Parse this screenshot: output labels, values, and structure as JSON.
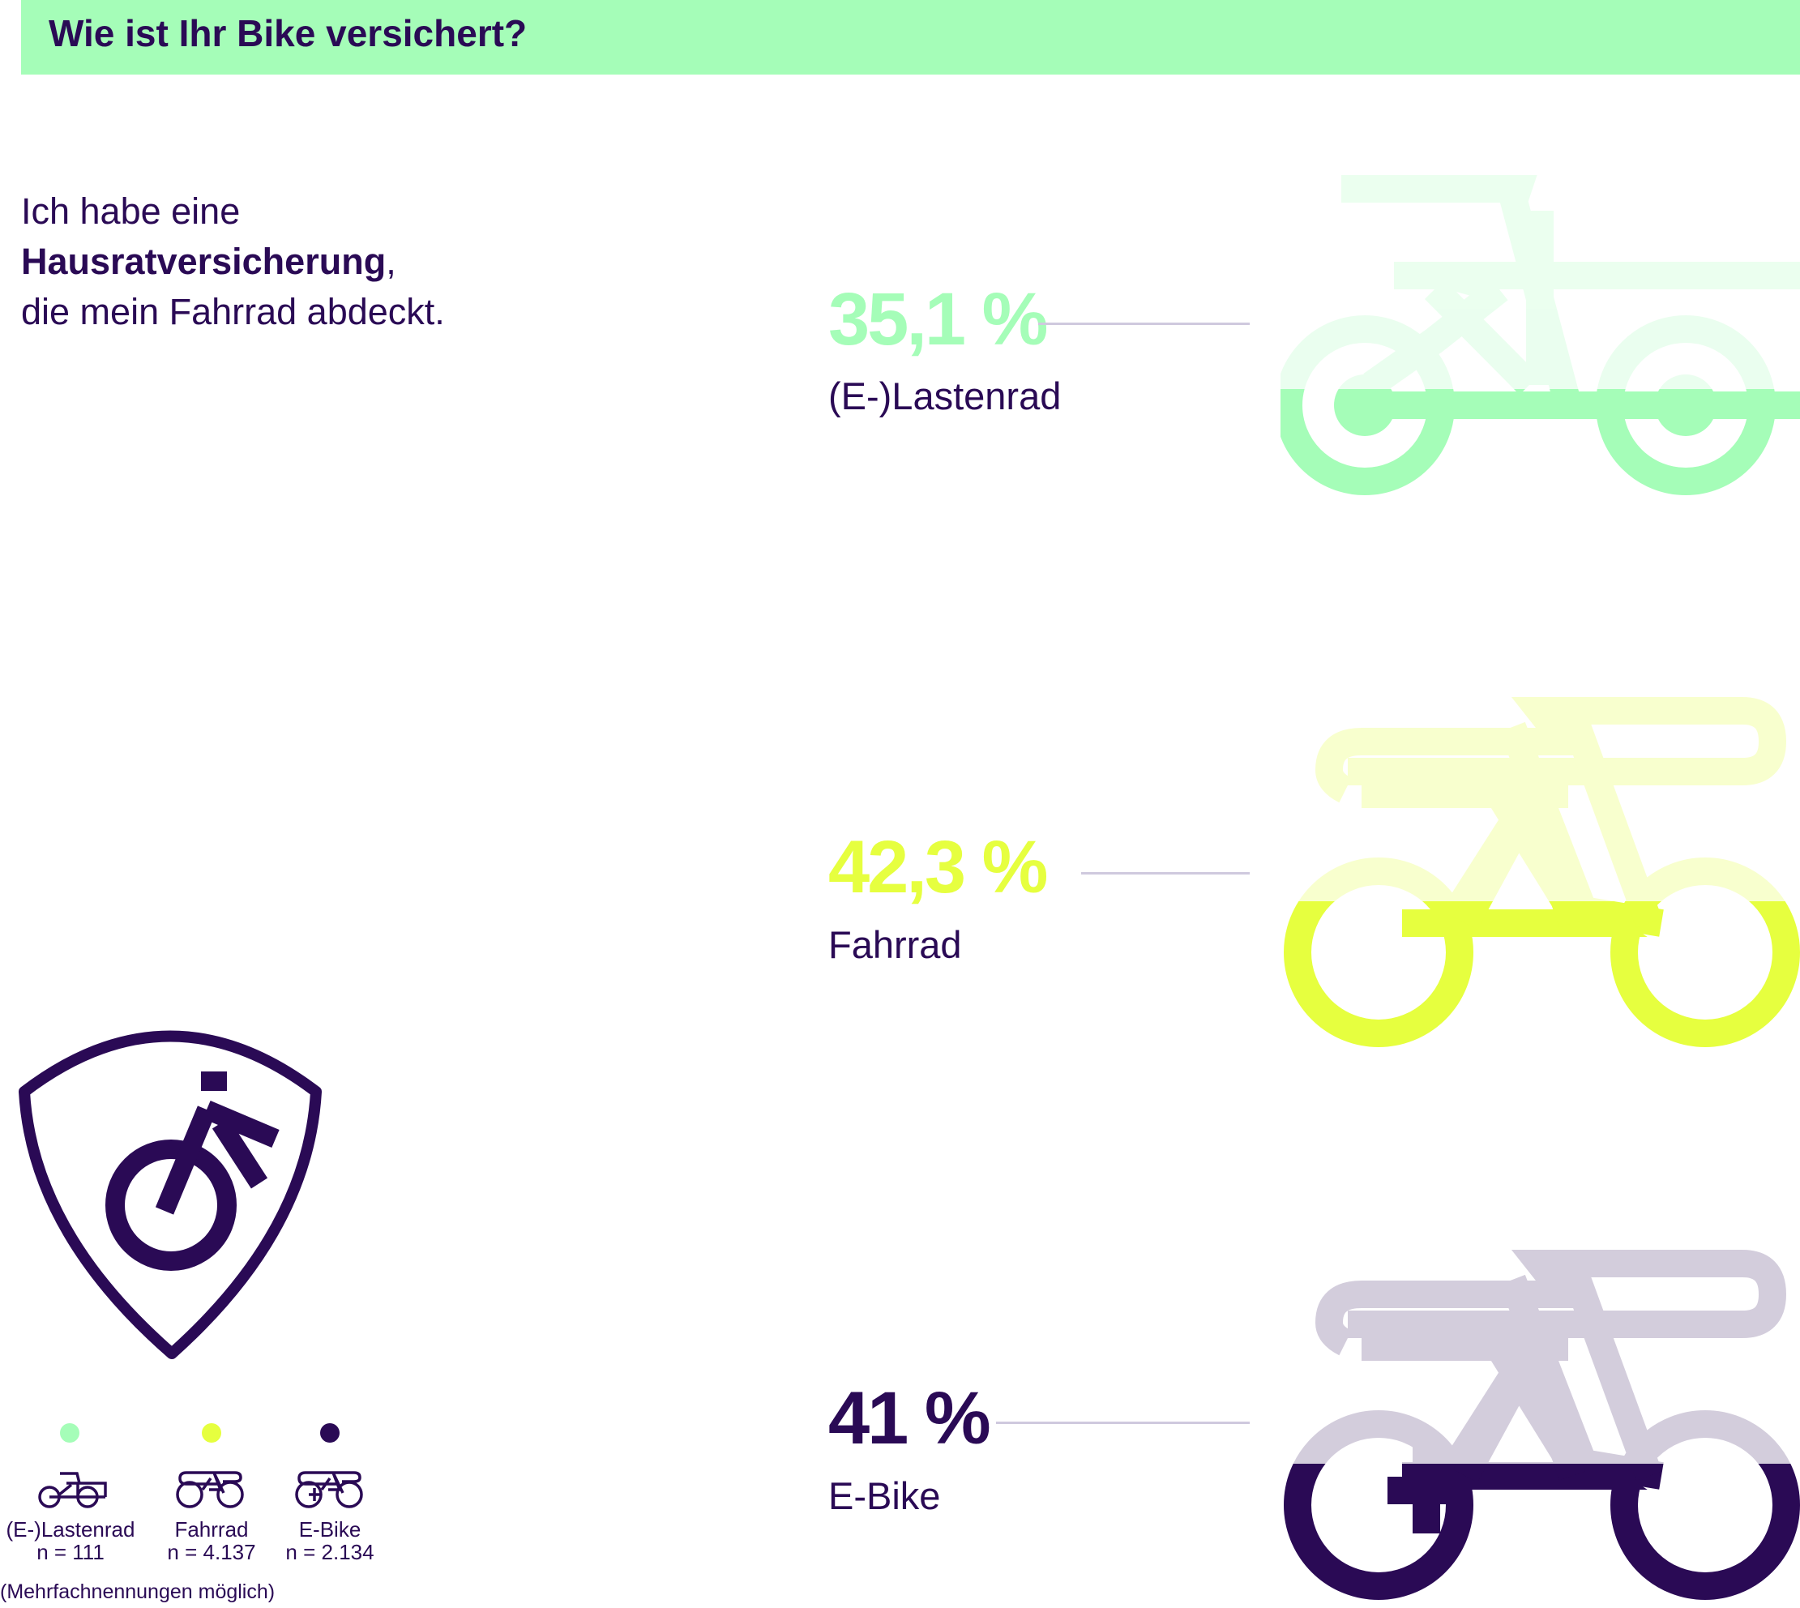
{
  "header": {
    "title": "Wie ist Ihr Bike versichert?"
  },
  "question": {
    "line1": "Ich habe eine",
    "bold": "Hausratversicherung",
    "after_bold": ",",
    "line3": "die mein Fahrrad abdeckt."
  },
  "chart_data": {
    "type": "bar",
    "title": "Wie ist Ihr Bike versichert?",
    "categories": [
      "(E-)Lastenrad",
      "Fahrrad",
      "E-Bike"
    ],
    "values": [
      35.1,
      42.3,
      41
    ],
    "value_labels": [
      "35,1 %",
      "42,3 %",
      "41 %"
    ],
    "unit": "%",
    "colors": [
      "#a5fdb8",
      "#e6ff3f",
      "#2a0a55"
    ],
    "icons": [
      "cargo-bike-icon",
      "bicycle-icon",
      "e-bike-icon"
    ],
    "legend": [
      {
        "label": "(E-)Lastenrad",
        "n": "n = 111"
      },
      {
        "label": "Fahrrad",
        "n": "n = 4.137"
      },
      {
        "label": "E-Bike",
        "n": "n = 2.134"
      }
    ],
    "note": "(Mehrfachnennungen möglich)"
  },
  "colors": {
    "accent_dark": "#2a0a55",
    "header_bg": "#a5fdb8",
    "leader_line": "#cfc9de"
  },
  "emblem": {
    "icon": "shield-bicycle-icon"
  }
}
